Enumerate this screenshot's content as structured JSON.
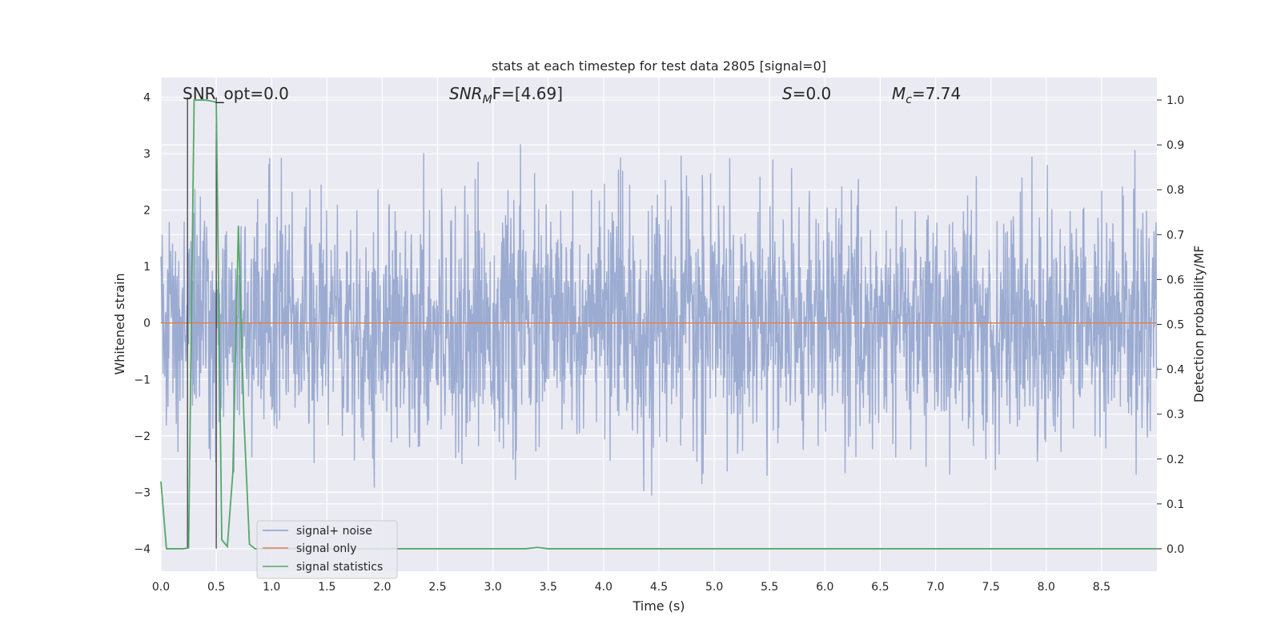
{
  "chart_data": {
    "type": "line",
    "title": "stats at each timestep for test data 2805 [signal=0]",
    "xlabel": "Time (s)",
    "ylabel_left": "Whitened strain",
    "ylabel_right": "Detection probability/MF",
    "xlim": [
      0,
      9.0
    ],
    "ylim_left": [
      -4.4,
      4.35
    ],
    "ylim_right": [
      -0.05,
      1.05
    ],
    "x_ticks": [
      "0.0",
      "0.5",
      "1.0",
      "1.5",
      "2.0",
      "2.5",
      "3.0",
      "3.5",
      "4.0",
      "4.5",
      "5.0",
      "5.5",
      "6.0",
      "6.5",
      "7.0",
      "7.5",
      "8.0",
      "8.5"
    ],
    "y_ticks_left": [
      "−4",
      "−3",
      "−2",
      "−1",
      "0",
      "1",
      "2",
      "3",
      "4"
    ],
    "y_ticks_right": [
      "0.0",
      "0.1",
      "0.2",
      "0.3",
      "0.4",
      "0.5",
      "0.6",
      "0.7",
      "0.8",
      "0.9",
      "1.0"
    ],
    "grid": true,
    "legend_position": "lower-left",
    "annotations": {
      "snr_opt": "SNR_opt=0.0",
      "snr_mf_sym": "SNR",
      "snr_mf_sub": "M",
      "snr_mf_rest": "F=[4.69]",
      "s_sym": "S",
      "s_rest": "=0.0",
      "mc_sym": "M",
      "mc_sub": "c",
      "mc_rest": "=7.74"
    },
    "series": [
      {
        "name": "signal+ noise",
        "color": "#8da0cb",
        "description_value": "whitened noise, roughly between -4 and 4"
      },
      {
        "name": "signal only",
        "color": "#dd8452",
        "values": "flat at 0"
      },
      {
        "name": "signal statistics",
        "color": "#55a868",
        "axis": "right",
        "x": [
          0.0,
          0.05,
          0.1,
          0.15,
          0.2,
          0.25,
          0.3,
          0.35,
          0.4,
          0.45,
          0.5,
          0.55,
          0.6,
          0.65,
          0.7,
          0.75,
          0.8,
          0.85,
          0.9,
          1.0,
          1.5,
          2.0,
          2.5,
          3.0,
          3.3,
          3.4,
          3.5,
          4.0,
          5.0,
          6.0,
          7.0,
          8.0,
          9.0
        ],
        "y": [
          0.15,
          0.0,
          0.0,
          0.0,
          0.0,
          0.002,
          1.0,
          1.0,
          1.0,
          0.998,
          0.995,
          0.02,
          0.005,
          0.17,
          0.72,
          0.29,
          0.01,
          0.0,
          0.0,
          0.0,
          0.0,
          0.0,
          0.0,
          0.0,
          0.0,
          0.003,
          0.0,
          0.0,
          0.0,
          0.0,
          0.0,
          0.0,
          0.0
        ]
      }
    ],
    "vertical_lines": [
      {
        "x": 0.24,
        "color": "#333333"
      },
      {
        "x": 0.5,
        "color": "#333333"
      }
    ]
  }
}
